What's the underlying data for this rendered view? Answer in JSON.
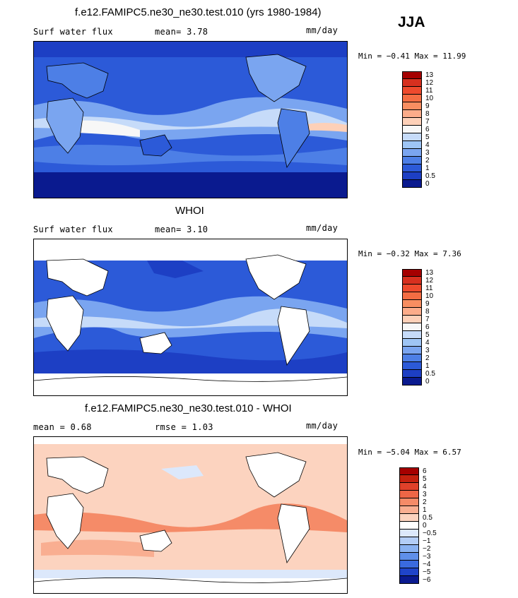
{
  "season": "JJA",
  "panels": [
    {
      "title": "f.e12.FAMIPC5.ne30_ne30.test.010 (yrs 1980-1984)",
      "left_label": "Surf water flux",
      "center_label": "mean=   3.78",
      "units": "mm/day",
      "minmax": "Min =  −0.41 Max =  11.99",
      "colorbar_ticks": [
        "13",
        "12",
        "11",
        "10",
        "9",
        "8",
        "7",
        "6",
        "5",
        "4",
        "3",
        "2",
        "1",
        "0.5",
        "0"
      ],
      "colorbar_colors": [
        "#a50000",
        "#d7301f",
        "#ee4a2d",
        "#f46d43",
        "#f88e61",
        "#fcac8a",
        "#fdd0b8",
        "#f7f7f7",
        "#c6dbf9",
        "#9ec5f5",
        "#7aa5f0",
        "#4d7fe6",
        "#2c5ad8",
        "#1d3fc4",
        "#0a1a8f"
      ]
    },
    {
      "title": "WHOI",
      "left_label": "Surf water flux",
      "center_label": "mean=   3.10",
      "units": "mm/day",
      "minmax": "Min =  −0.32 Max =   7.36",
      "colorbar_ticks": [
        "13",
        "12",
        "11",
        "10",
        "9",
        "8",
        "7",
        "6",
        "5",
        "4",
        "3",
        "2",
        "1",
        "0.5",
        "0"
      ],
      "colorbar_colors": [
        "#a50000",
        "#d7301f",
        "#ee4a2d",
        "#f46d43",
        "#f88e61",
        "#fcac8a",
        "#fdd0b8",
        "#f7f7f7",
        "#c6dbf9",
        "#9ec5f5",
        "#7aa5f0",
        "#4d7fe6",
        "#2c5ad8",
        "#1d3fc4",
        "#0a1a8f"
      ]
    },
    {
      "title": "f.e12.FAMIPC5.ne30_ne30.test.010 - WHOI",
      "left_label": "mean =   0.68",
      "center_label": "rmse =   1.03",
      "units": "mm/day",
      "minmax": "Min =  −5.04 Max =   6.57",
      "colorbar_ticks": [
        "6",
        "5",
        "4",
        "3",
        "2",
        "1",
        "0.5",
        "0",
        "−0.5",
        "−1",
        "−2",
        "−3",
        "−4",
        "−5",
        "−6"
      ],
      "colorbar_colors": [
        "#a50000",
        "#c4210f",
        "#e0412a",
        "#ee6646",
        "#f58b68",
        "#f9ae91",
        "#fcd3bf",
        "#ffffff",
        "#dce8fb",
        "#b3cdf6",
        "#8ab2f1",
        "#5f8fe9",
        "#3a6ade",
        "#1f44c9",
        "#0a1a8f"
      ]
    }
  ]
}
